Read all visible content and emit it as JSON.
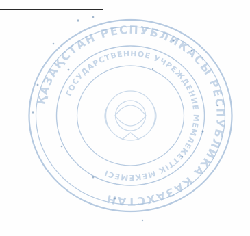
{
  "document": {
    "seal": {
      "outer_text": "ҚАЗАҚСТАН РЕСПУБЛИКАСЫ РЕСПУБЛИКА КАЗАХСТАН",
      "inner_text": "ГОСУДАРСТВЕННОЕ УЧРЕЖДЕНИЕ МЕМЛЕКЕТТІК МЕКЕМЕСІ",
      "ink_color": "#7fa4c9",
      "emblem": "state-emblem-icon"
    },
    "signature_line": {
      "color": "#2a2a2a"
    }
  }
}
